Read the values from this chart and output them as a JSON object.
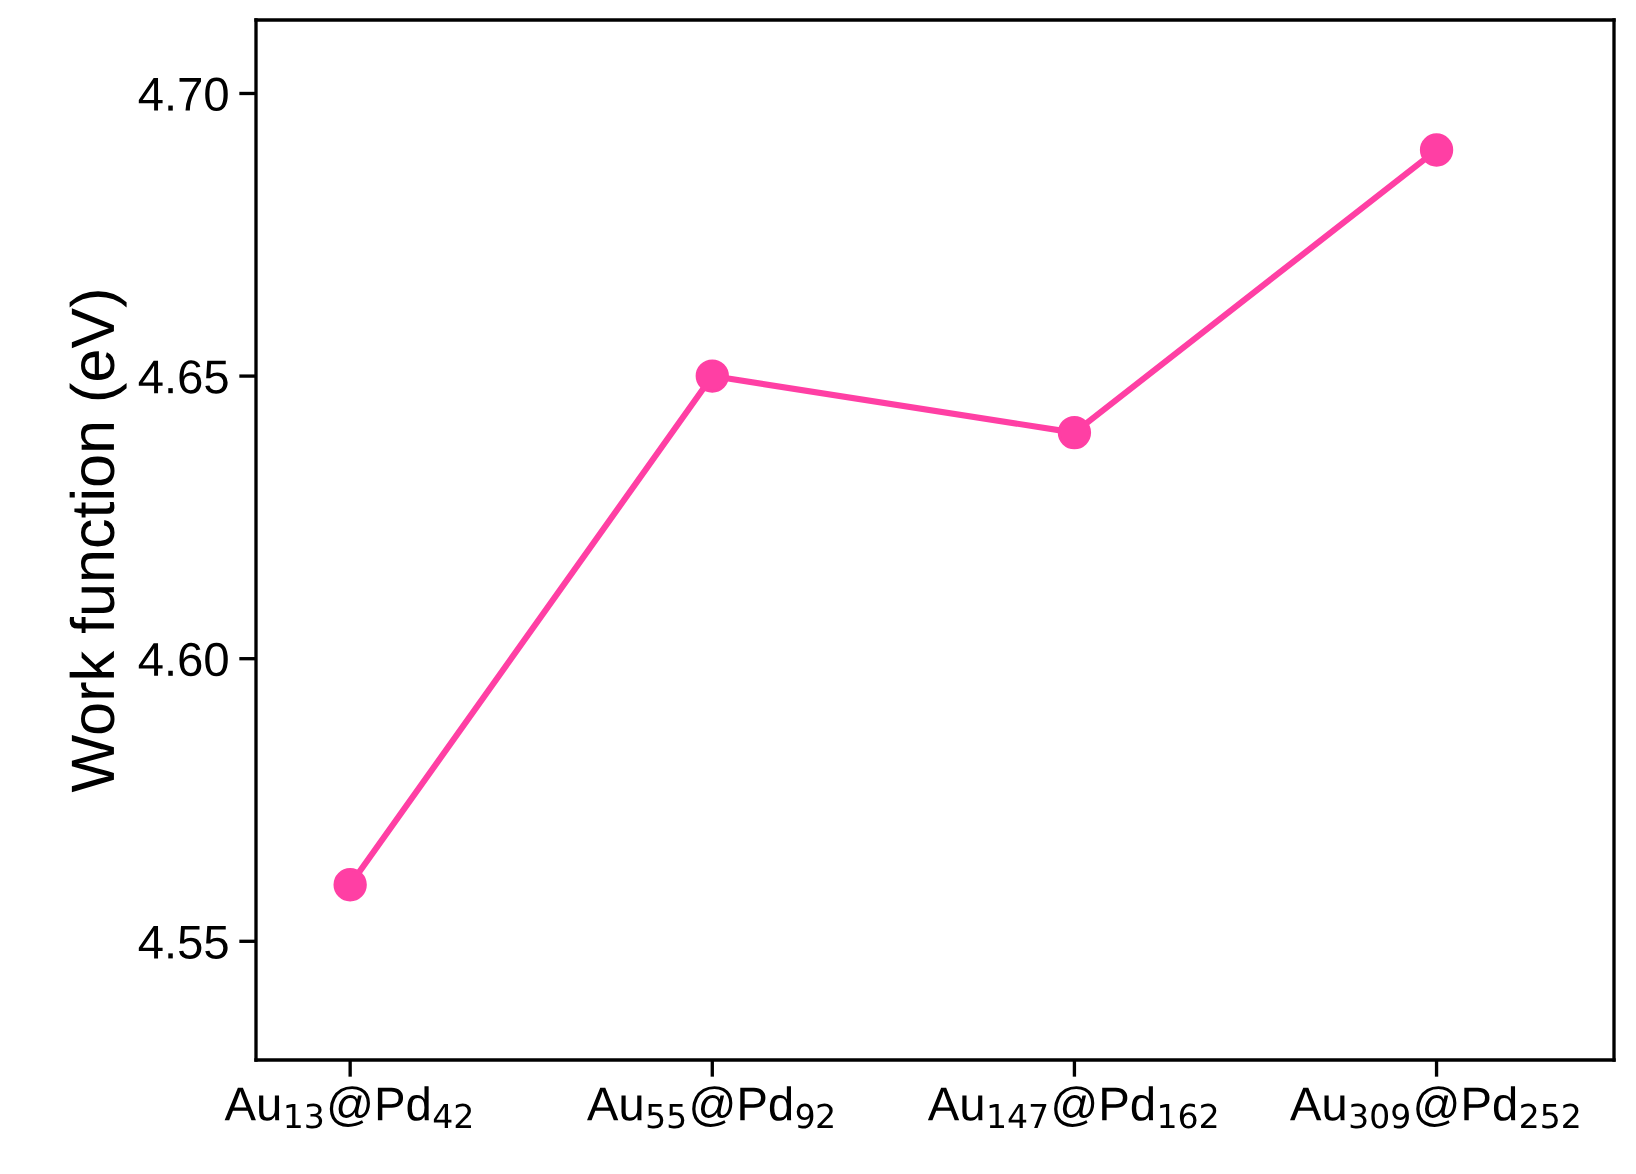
{
  "chart_data": {
    "type": "line",
    "ylabel": "Work function (eV)",
    "categories": [
      "Au$_{13}$@Pd$_{42}$",
      "Au$_{55}$@Pd$_{92}$",
      "Au$_{147}$@Pd$_{162}$",
      "Au$_{309}$@Pd$_{252}$"
    ],
    "series": [
      {
        "color": "#ff3fa4",
        "values": [
          4.56,
          4.65,
          4.64,
          4.69
        ]
      }
    ],
    "ylim": [
      4.529,
      4.713
    ],
    "yticks": [
      {
        "value": 4.55,
        "label": "4.55"
      },
      {
        "value": 4.6,
        "label": "4.60"
      },
      {
        "value": 4.65,
        "label": "4.65"
      },
      {
        "value": 4.7,
        "label": "4.70"
      }
    ],
    "marker": "circle",
    "line_style": "solid",
    "grid": false,
    "legend": false
  }
}
